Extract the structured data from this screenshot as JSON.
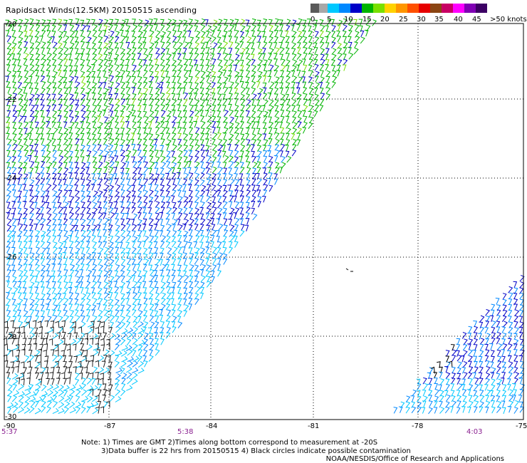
{
  "title": "Rapidsact Winds(12.5KM) 20150515 ascending",
  "legend": {
    "colors": [
      "#5a5a5a",
      "#a8a8a8",
      "#00c8ff",
      "#0088ff",
      "#0000c8",
      "#00b400",
      "#78e000",
      "#ffd200",
      "#ff9600",
      "#ff5000",
      "#e60000",
      "#8b4513",
      "#c80064",
      "#ff00ff",
      "#8000b4",
      "#3c0064"
    ],
    "labels": [
      "0",
      "5",
      "10",
      "15",
      "20",
      "25",
      "30",
      "35",
      "40",
      "45",
      ">50 knots"
    ]
  },
  "latitude_labels": [
    "-20",
    "-22",
    "-24",
    "-26",
    "-28",
    "-30"
  ],
  "longitude_labels": [
    "-90",
    "-87",
    "-84",
    "-81",
    "-78",
    "-75"
  ],
  "time_labels": [
    "5:37",
    "5:38",
    "4:03"
  ],
  "notes": {
    "line1": "Note: 1) Times are GMT 2)Times along bottom correspond to measurement at -20S",
    "line2": "3)Data buffer is 22 hrs from 20150515 4) Black circles indicate possible contamination"
  },
  "credit": "NOAA/NESDIS/Office of Research and Applications"
}
